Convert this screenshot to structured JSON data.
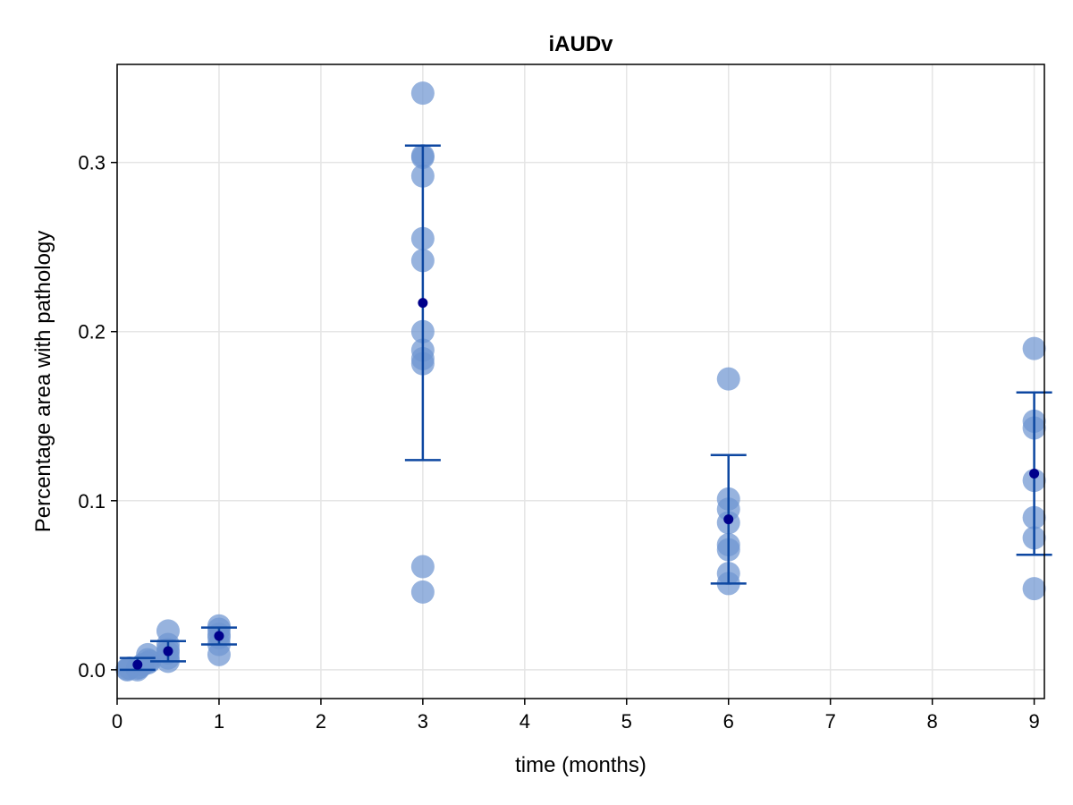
{
  "chart_data": {
    "type": "scatter",
    "title": "iAUDv",
    "xlabel": "time (months)",
    "ylabel": "Percentage area with pathology",
    "xlim": [
      0,
      9.1
    ],
    "ylim": [
      -0.017,
      0.358
    ],
    "xticks": [
      0,
      1,
      2,
      3,
      4,
      5,
      6,
      7,
      8,
      9
    ],
    "yticks": [
      0.0,
      0.1,
      0.2,
      0.3
    ],
    "ytick_labels": [
      "0.0",
      "0.1",
      "0.2",
      "0.3"
    ],
    "grid": true,
    "colors": {
      "points": "#6f96d1",
      "errorbar": "#0d47a1",
      "mean": "#00008b",
      "grid": "#e5e5e5"
    },
    "points": [
      {
        "x": 0.1,
        "y": 0.0
      },
      {
        "x": 0.1,
        "y": 0.0005
      },
      {
        "x": 0.12,
        "y": 0.001
      },
      {
        "x": 0.2,
        "y": 0.0
      },
      {
        "x": 0.2,
        "y": 0.001
      },
      {
        "x": 0.22,
        "y": 0.0015
      },
      {
        "x": 0.25,
        "y": 0.003
      },
      {
        "x": 0.3,
        "y": 0.004
      },
      {
        "x": 0.3,
        "y": 0.006
      },
      {
        "x": 0.3,
        "y": 0.009
      },
      {
        "x": 0.32,
        "y": 0.005
      },
      {
        "x": 0.5,
        "y": 0.023
      },
      {
        "x": 0.5,
        "y": 0.015
      },
      {
        "x": 0.5,
        "y": 0.012
      },
      {
        "x": 0.5,
        "y": 0.01
      },
      {
        "x": 0.5,
        "y": 0.007
      },
      {
        "x": 0.5,
        "y": 0.005
      },
      {
        "x": 1.0,
        "y": 0.026
      },
      {
        "x": 1.0,
        "y": 0.024
      },
      {
        "x": 1.0,
        "y": 0.021
      },
      {
        "x": 1.0,
        "y": 0.019
      },
      {
        "x": 1.0,
        "y": 0.015
      },
      {
        "x": 1.0,
        "y": 0.009
      },
      {
        "x": 3.0,
        "y": 0.341
      },
      {
        "x": 3.0,
        "y": 0.304
      },
      {
        "x": 3.0,
        "y": 0.303
      },
      {
        "x": 3.0,
        "y": 0.292
      },
      {
        "x": 3.0,
        "y": 0.255
      },
      {
        "x": 3.0,
        "y": 0.242
      },
      {
        "x": 3.0,
        "y": 0.2
      },
      {
        "x": 3.0,
        "y": 0.189
      },
      {
        "x": 3.0,
        "y": 0.184
      },
      {
        "x": 3.0,
        "y": 0.181
      },
      {
        "x": 3.0,
        "y": 0.061
      },
      {
        "x": 3.0,
        "y": 0.046
      },
      {
        "x": 6.0,
        "y": 0.172
      },
      {
        "x": 6.0,
        "y": 0.101
      },
      {
        "x": 6.0,
        "y": 0.095
      },
      {
        "x": 6.0,
        "y": 0.087
      },
      {
        "x": 6.0,
        "y": 0.074
      },
      {
        "x": 6.0,
        "y": 0.071
      },
      {
        "x": 6.0,
        "y": 0.057
      },
      {
        "x": 6.0,
        "y": 0.051
      },
      {
        "x": 9.0,
        "y": 0.19
      },
      {
        "x": 9.0,
        "y": 0.147
      },
      {
        "x": 9.0,
        "y": 0.143
      },
      {
        "x": 9.0,
        "y": 0.112
      },
      {
        "x": 9.0,
        "y": 0.09
      },
      {
        "x": 9.0,
        "y": 0.078
      },
      {
        "x": 9.0,
        "y": 0.048
      }
    ],
    "summary": [
      {
        "x": 0.2,
        "mean": 0.003,
        "lower": 0.0,
        "upper": 0.007
      },
      {
        "x": 0.5,
        "mean": 0.011,
        "lower": 0.005,
        "upper": 0.017
      },
      {
        "x": 1.0,
        "mean": 0.02,
        "lower": 0.015,
        "upper": 0.025
      },
      {
        "x": 3.0,
        "mean": 0.217,
        "lower": 0.124,
        "upper": 0.31
      },
      {
        "x": 6.0,
        "mean": 0.089,
        "lower": 0.051,
        "upper": 0.127
      },
      {
        "x": 9.0,
        "mean": 0.116,
        "lower": 0.068,
        "upper": 0.164
      }
    ]
  }
}
